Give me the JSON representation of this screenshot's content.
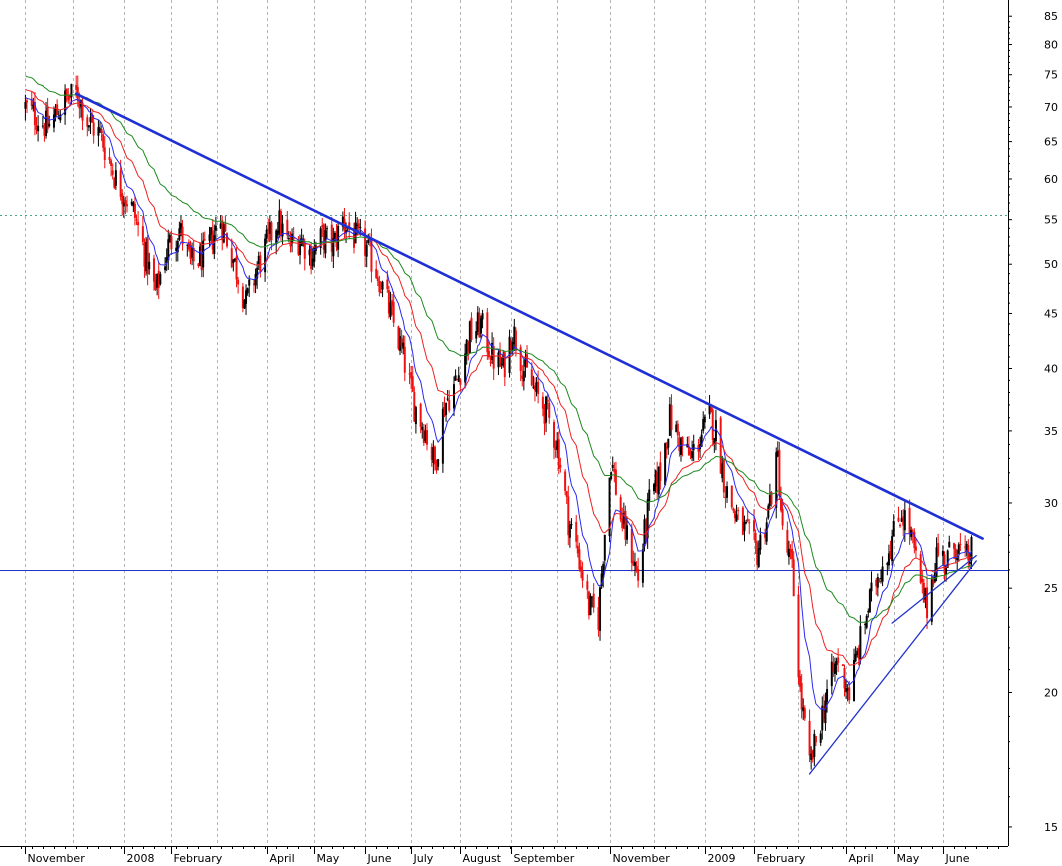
{
  "chart_data": {
    "type": "candlestick",
    "title": "",
    "xlabel": "",
    "ylabel": "",
    "y_scale": "log",
    "ylim": [
      14.4,
      88
    ],
    "x_range": [
      "2007-11-01",
      "2009-06-30"
    ],
    "grid": {
      "vertical": true,
      "horizontal": false
    },
    "y_ticks": [
      85,
      80,
      75,
      70,
      65,
      60,
      55,
      50,
      45,
      40,
      35,
      30,
      25,
      20,
      15
    ],
    "x_ticks": [
      {
        "label": "November",
        "date": "2007-11-01"
      },
      {
        "label": "2008",
        "date": "2008-01-02"
      },
      {
        "label": "February",
        "date": "2008-02-01"
      },
      {
        "label": "April",
        "date": "2008-04-01"
      },
      {
        "label": "May",
        "date": "2008-05-01"
      },
      {
        "label": "June",
        "date": "2008-06-02"
      },
      {
        "label": "July",
        "date": "2008-07-01"
      },
      {
        "label": "August",
        "date": "2008-08-01"
      },
      {
        "label": "September",
        "date": "2008-09-02"
      },
      {
        "label": "November",
        "date": "2008-11-03"
      },
      {
        "label": "2009",
        "date": "2009-01-02"
      },
      {
        "label": "February",
        "date": "2009-02-02"
      },
      {
        "label": "April",
        "date": "2009-04-01"
      },
      {
        "label": "May",
        "date": "2009-05-01"
      },
      {
        "label": "June",
        "date": "2009-06-01"
      }
    ],
    "extra_grid_dates": [
      "2007-12-01",
      "2008-03-01",
      "2008-10-01",
      "2008-12-01",
      "2009-03-02"
    ],
    "price_path": [
      [
        "2007-11-01",
        70
      ],
      [
        "2007-11-15",
        67
      ],
      [
        "2007-11-26",
        71
      ],
      [
        "2007-12-04",
        72
      ],
      [
        "2007-12-10",
        68
      ],
      [
        "2007-12-18",
        66
      ],
      [
        "2007-12-28",
        60
      ],
      [
        "2008-01-08",
        56
      ],
      [
        "2008-01-14",
        52
      ],
      [
        "2008-01-22",
        47
      ],
      [
        "2008-01-30",
        52
      ],
      [
        "2008-02-06",
        54
      ],
      [
        "2008-02-13",
        50
      ],
      [
        "2008-02-22",
        51
      ],
      [
        "2008-03-03",
        55
      ],
      [
        "2008-03-12",
        50
      ],
      [
        "2008-03-19",
        46
      ],
      [
        "2008-03-27",
        50
      ],
      [
        "2008-04-03",
        53
      ],
      [
        "2008-04-08",
        55
      ],
      [
        "2008-04-15",
        52
      ],
      [
        "2008-04-22",
        53
      ],
      [
        "2008-04-29",
        51
      ],
      [
        "2008-05-06",
        53
      ],
      [
        "2008-05-13",
        52
      ],
      [
        "2008-05-19",
        55
      ],
      [
        "2008-05-26",
        53
      ],
      [
        "2008-06-02",
        52
      ],
      [
        "2008-06-10",
        49
      ],
      [
        "2008-06-18",
        45
      ],
      [
        "2008-06-26",
        41
      ],
      [
        "2008-07-03",
        37
      ],
      [
        "2008-07-10",
        35
      ],
      [
        "2008-07-16",
        32.5
      ],
      [
        "2008-07-22",
        37
      ],
      [
        "2008-07-30",
        39
      ],
      [
        "2008-08-07",
        43
      ],
      [
        "2008-08-14",
        44
      ],
      [
        "2008-08-21",
        41
      ],
      [
        "2008-08-28",
        40
      ],
      [
        "2008-09-03",
        43.5
      ],
      [
        "2008-09-10",
        40
      ],
      [
        "2008-09-17",
        38
      ],
      [
        "2008-09-24",
        36.5
      ],
      [
        "2008-10-01",
        34
      ],
      [
        "2008-10-08",
        29
      ],
      [
        "2008-10-14",
        27
      ],
      [
        "2008-10-21",
        24
      ],
      [
        "2008-10-27",
        23.5
      ],
      [
        "2008-11-04",
        33
      ],
      [
        "2008-11-10",
        29
      ],
      [
        "2008-11-17",
        27
      ],
      [
        "2008-11-21",
        25.5
      ],
      [
        "2008-11-28",
        30
      ],
      [
        "2008-12-05",
        32
      ],
      [
        "2008-12-11",
        36
      ],
      [
        "2008-12-18",
        34
      ],
      [
        "2008-12-24",
        33
      ],
      [
        "2009-01-05",
        36
      ],
      [
        "2009-01-09",
        35
      ],
      [
        "2009-01-15",
        31
      ],
      [
        "2009-01-22",
        29
      ],
      [
        "2009-01-29",
        28
      ],
      [
        "2009-02-04",
        27
      ],
      [
        "2009-02-10",
        29
      ],
      [
        "2009-02-17",
        33
      ],
      [
        "2009-02-20",
        28
      ],
      [
        "2009-02-26",
        26
      ],
      [
        "2009-03-03",
        20
      ],
      [
        "2009-03-09",
        17
      ],
      [
        "2009-03-13",
        18
      ],
      [
        "2009-03-20",
        20
      ],
      [
        "2009-03-27",
        21.5
      ],
      [
        "2009-04-03",
        20
      ],
      [
        "2009-04-09",
        22
      ],
      [
        "2009-04-15",
        24
      ],
      [
        "2009-04-22",
        26
      ],
      [
        "2009-04-29",
        27.5
      ],
      [
        "2009-05-06",
        29.5
      ],
      [
        "2009-05-12",
        28
      ],
      [
        "2009-05-18",
        25
      ],
      [
        "2009-05-22",
        24
      ],
      [
        "2009-05-28",
        27
      ],
      [
        "2009-06-03",
        26.5
      ],
      [
        "2009-06-09",
        27.5
      ],
      [
        "2009-06-15",
        26.5
      ],
      [
        "2009-06-19",
        27
      ]
    ],
    "annotations": {
      "horizontal_levels": [
        {
          "value": 55.5,
          "style": "dotted",
          "color": "#4aa38a"
        },
        {
          "value": 26,
          "style": "solid",
          "color": "#2233cc"
        }
      ],
      "trendlines": [
        {
          "from": [
            "2007-12-03",
            72
          ],
          "to": [
            "2009-06-26",
            27.8
          ],
          "color": "#1f2fd6",
          "width": 2.6
        },
        {
          "from": [
            "2009-03-09",
            16.8
          ],
          "to": [
            "2009-06-22",
            26.5
          ],
          "color": "#2233cc",
          "width": 1.3
        },
        {
          "from": [
            "2009-04-30",
            23.2
          ],
          "to": [
            "2009-06-22",
            26.8
          ],
          "color": "#2233cc",
          "width": 1.3
        }
      ]
    },
    "moving_averages": [
      {
        "period": 10,
        "color": "#2a2af0"
      },
      {
        "period": 25,
        "color": "#ee2222"
      },
      {
        "period": 50,
        "color": "#1e8a1e"
      }
    ],
    "candle_colors": {
      "up": "#000000",
      "down": "#ee1111"
    }
  }
}
